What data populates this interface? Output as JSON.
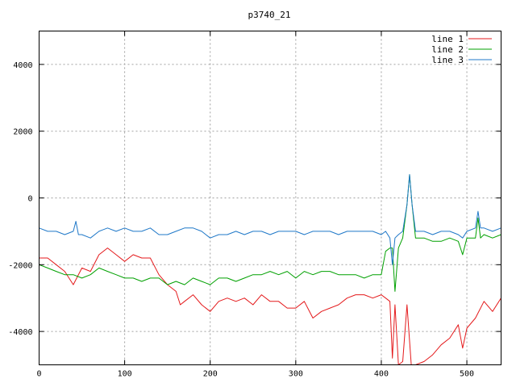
{
  "chart_data": {
    "type": "line",
    "title": "p3740_21",
    "xlabel": "",
    "ylabel": "",
    "xlim": [
      0,
      540
    ],
    "ylim": [
      -5000,
      5000
    ],
    "xticks": [
      0,
      100,
      200,
      300,
      400,
      500
    ],
    "yticks": [
      -4000,
      -2000,
      0,
      2000,
      4000
    ],
    "grid": true,
    "legend_position": "top-right",
    "series": [
      {
        "name": "line 1",
        "color": "#e41a1c",
        "x": [
          0,
          10,
          20,
          30,
          40,
          50,
          60,
          70,
          80,
          90,
          100,
          110,
          120,
          130,
          140,
          150,
          160,
          165,
          170,
          180,
          190,
          200,
          210,
          220,
          230,
          240,
          250,
          260,
          270,
          280,
          290,
          300,
          310,
          320,
          330,
          340,
          350,
          360,
          370,
          380,
          390,
          400,
          405,
          410,
          413,
          416,
          420,
          425,
          430,
          435,
          440,
          450,
          460,
          470,
          480,
          490,
          495,
          500,
          510,
          520,
          530,
          540
        ],
        "y": [
          -1800,
          -1800,
          -2000,
          -2200,
          -2600,
          -2100,
          -2200,
          -1700,
          -1500,
          -1700,
          -1900,
          -1700,
          -1800,
          -1800,
          -2300,
          -2600,
          -2800,
          -3200,
          -3100,
          -2900,
          -3200,
          -3400,
          -3100,
          -3000,
          -3100,
          -3000,
          -3200,
          -2900,
          -3100,
          -3100,
          -3300,
          -3300,
          -3100,
          -3600,
          -3400,
          -3300,
          -3200,
          -3000,
          -2900,
          -2900,
          -3000,
          -2900,
          -3000,
          -3100,
          -4800,
          -3200,
          -5000,
          -4900,
          -3200,
          -5000,
          -5000,
          -4900,
          -4700,
          -4400,
          -4200,
          -3800,
          -4500,
          -3900,
          -3600,
          -3100,
          -3400,
          -3000
        ]
      },
      {
        "name": "line 2",
        "color": "#00a000",
        "x": [
          0,
          10,
          20,
          30,
          40,
          50,
          60,
          70,
          80,
          90,
          100,
          110,
          120,
          130,
          140,
          150,
          160,
          170,
          180,
          190,
          200,
          210,
          220,
          230,
          240,
          250,
          260,
          270,
          280,
          290,
          300,
          310,
          320,
          330,
          340,
          350,
          360,
          370,
          380,
          390,
          400,
          405,
          410,
          413,
          416,
          420,
          425,
          430,
          433,
          436,
          440,
          450,
          460,
          470,
          480,
          490,
          495,
          500,
          510,
          513,
          516,
          520,
          530,
          540
        ],
        "y": [
          -2000,
          -2100,
          -2200,
          -2300,
          -2300,
          -2400,
          -2300,
          -2100,
          -2200,
          -2300,
          -2400,
          -2400,
          -2500,
          -2400,
          -2400,
          -2600,
          -2500,
          -2600,
          -2400,
          -2500,
          -2600,
          -2400,
          -2400,
          -2500,
          -2400,
          -2300,
          -2300,
          -2200,
          -2300,
          -2200,
          -2400,
          -2200,
          -2300,
          -2200,
          -2200,
          -2300,
          -2300,
          -2300,
          -2400,
          -2300,
          -2300,
          -1600,
          -1500,
          -1500,
          -2800,
          -1500,
          -1200,
          -200,
          700,
          -200,
          -1200,
          -1200,
          -1300,
          -1300,
          -1200,
          -1300,
          -1700,
          -1200,
          -1200,
          -600,
          -1200,
          -1100,
          -1200,
          -1100
        ]
      },
      {
        "name": "line 3",
        "color": "#1f78c8",
        "x": [
          0,
          10,
          20,
          30,
          40,
          43,
          46,
          50,
          60,
          70,
          80,
          90,
          100,
          110,
          120,
          130,
          140,
          150,
          160,
          170,
          180,
          190,
          200,
          210,
          220,
          230,
          240,
          250,
          260,
          270,
          280,
          290,
          300,
          310,
          320,
          330,
          340,
          350,
          360,
          370,
          380,
          390,
          400,
          405,
          410,
          413,
          416,
          420,
          425,
          430,
          433,
          436,
          440,
          450,
          460,
          470,
          480,
          490,
          495,
          500,
          510,
          513,
          516,
          520,
          530,
          540
        ],
        "y": [
          -900,
          -1000,
          -1000,
          -1100,
          -1000,
          -700,
          -1100,
          -1100,
          -1200,
          -1000,
          -900,
          -1000,
          -900,
          -1000,
          -1000,
          -900,
          -1100,
          -1100,
          -1000,
          -900,
          -900,
          -1000,
          -1200,
          -1100,
          -1100,
          -1000,
          -1100,
          -1000,
          -1000,
          -1100,
          -1000,
          -1000,
          -1000,
          -1100,
          -1000,
          -1000,
          -1000,
          -1100,
          -1000,
          -1000,
          -1000,
          -1000,
          -1100,
          -1000,
          -1200,
          -2000,
          -1200,
          -1100,
          -1000,
          -200,
          700,
          -200,
          -1000,
          -1000,
          -1100,
          -1000,
          -1000,
          -1100,
          -1200,
          -1000,
          -900,
          -400,
          -900,
          -900,
          -1000,
          -900
        ]
      }
    ]
  }
}
